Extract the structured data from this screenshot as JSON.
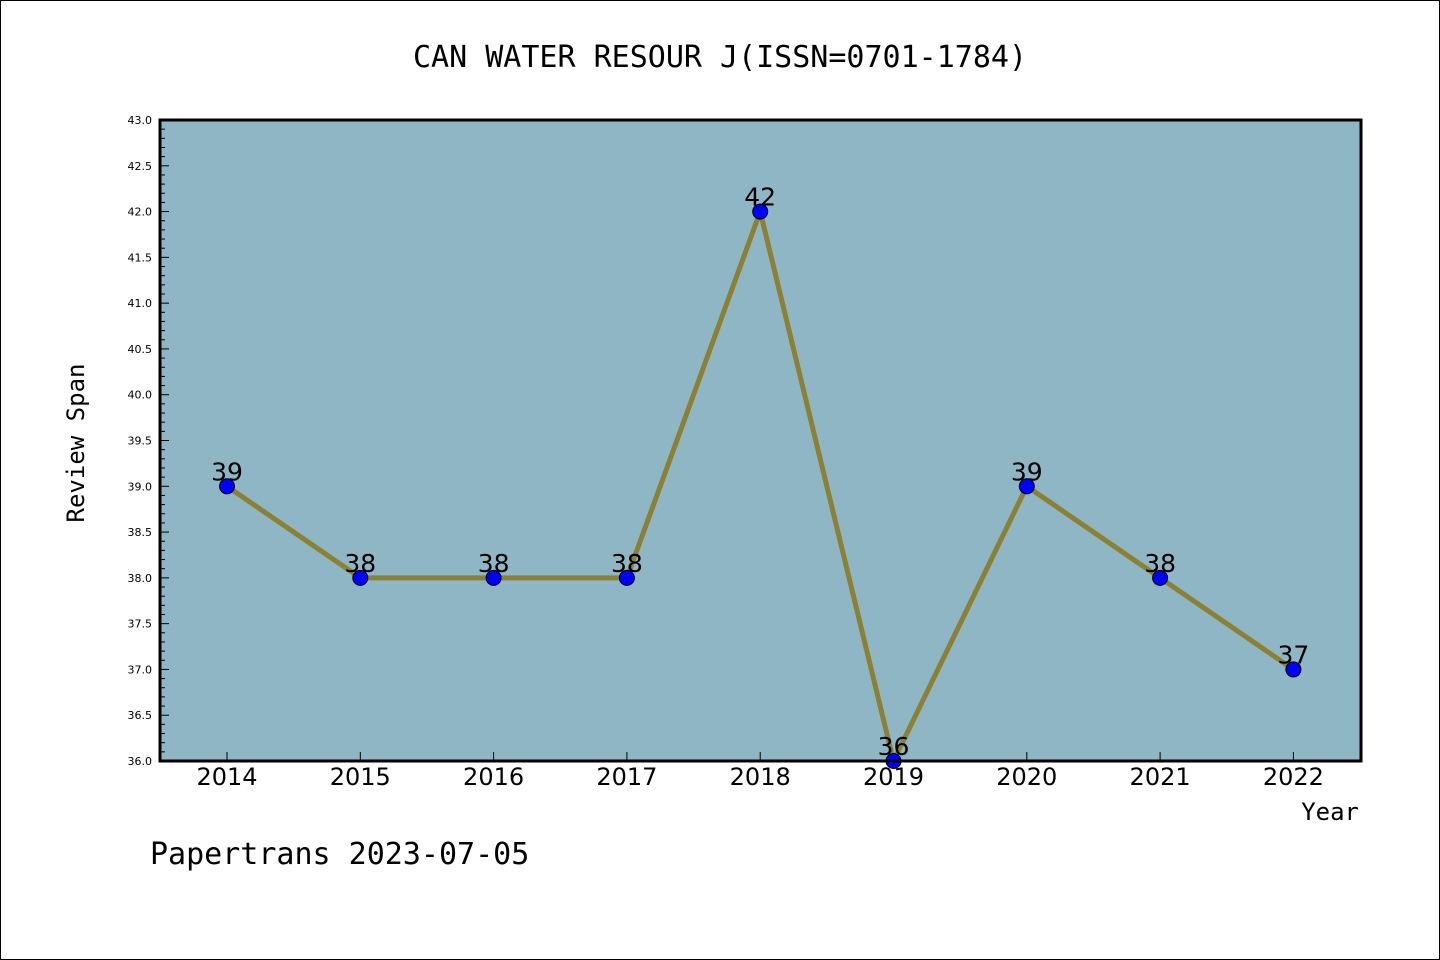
{
  "chart_data": {
    "type": "line",
    "title": "CAN WATER RESOUR J(ISSN=0701-1784)",
    "xlabel": "Year",
    "ylabel": "Review Span",
    "categories": [
      "2014",
      "2015",
      "2016",
      "2017",
      "2018",
      "2019",
      "2020",
      "2021",
      "2022"
    ],
    "series": [
      {
        "values": [
          39,
          38,
          38,
          38,
          42,
          36,
          39,
          38,
          37
        ]
      }
    ],
    "data_labels": [
      "39",
      "38",
      "38",
      "38",
      "42",
      "36",
      "39",
      "38",
      "37"
    ],
    "ylim": [
      36.0,
      43.0
    ],
    "y_ticks": [
      "36.0",
      "36.5",
      "37.0",
      "37.5",
      "38.0",
      "38.5",
      "39.0",
      "39.5",
      "40.0",
      "40.5",
      "41.0",
      "41.5",
      "42.0",
      "42.5",
      "43.0"
    ],
    "grid": false,
    "legend": "none",
    "colors": {
      "plot_background": "#8fb6c4",
      "line": "#8c8034",
      "marker": "#0000ff"
    }
  },
  "footer": {
    "text": "Papertrans 2023-07-05"
  }
}
